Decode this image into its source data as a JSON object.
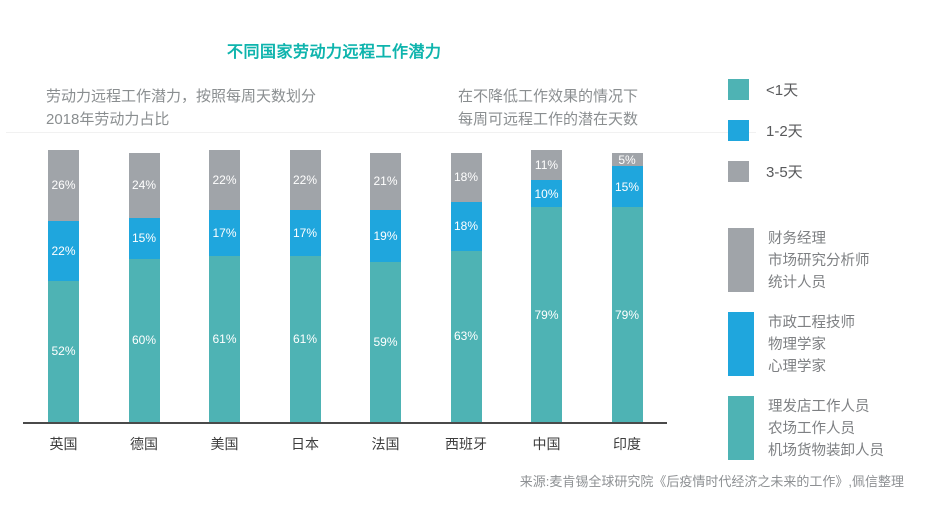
{
  "title": "不同国家劳动力远程工作潜力",
  "subtitle_left": {
    "line1": "劳动力远程工作潜力，按照每周天数划分",
    "line2": "2018年劳动力占比"
  },
  "subtitle_right": {
    "line1": "在不降低工作效果的情况下",
    "line2": "每周可远程工作的潜在天数"
  },
  "colors": {
    "teal": "#4eb3b4",
    "blue": "#1fa6dd",
    "gray": "#a0a4a9",
    "title_accent": "#0eb4ad",
    "axis": "#4a4a4a",
    "segment_label_text": "#ffffff"
  },
  "chart_data": {
    "type": "bar",
    "stacked": true,
    "categories": [
      "英国",
      "德国",
      "美国",
      "日本",
      "法国",
      "西班牙",
      "中国",
      "印度"
    ],
    "series": [
      {
        "name": "<1天",
        "color_key": "teal",
        "values": [
          52,
          60,
          61,
          61,
          59,
          63,
          79,
          79
        ]
      },
      {
        "name": "1-2天",
        "color_key": "blue",
        "values": [
          22,
          15,
          17,
          17,
          19,
          18,
          10,
          15
        ]
      },
      {
        "name": "3-5天",
        "color_key": "gray",
        "values": [
          26,
          24,
          22,
          22,
          21,
          18,
          11,
          5
        ]
      }
    ],
    "value_suffix": "%",
    "ylim": [
      0,
      100
    ],
    "ylabel": "",
    "xlabel": "",
    "grid": false,
    "legend_position": "right"
  },
  "legend": {
    "day_items": [
      {
        "label": "<1天",
        "color_key": "teal"
      },
      {
        "label": "1-2天",
        "color_key": "blue"
      },
      {
        "label": "3-5天",
        "color_key": "gray"
      }
    ],
    "occupation_groups": [
      {
        "color_key": "gray",
        "lines": [
          "财务经理",
          "市场研究分析师",
          "统计人员"
        ]
      },
      {
        "color_key": "blue",
        "lines": [
          "市政工程技师",
          "物理学家",
          "心理学家"
        ]
      },
      {
        "color_key": "teal",
        "lines": [
          "理发店工作人员",
          "农场工作人员",
          "机场货物装卸人员"
        ]
      }
    ]
  },
  "source": "来源:麦肯锡全球研究院《后疫情时代经济之未来的工作》,佩信整理"
}
